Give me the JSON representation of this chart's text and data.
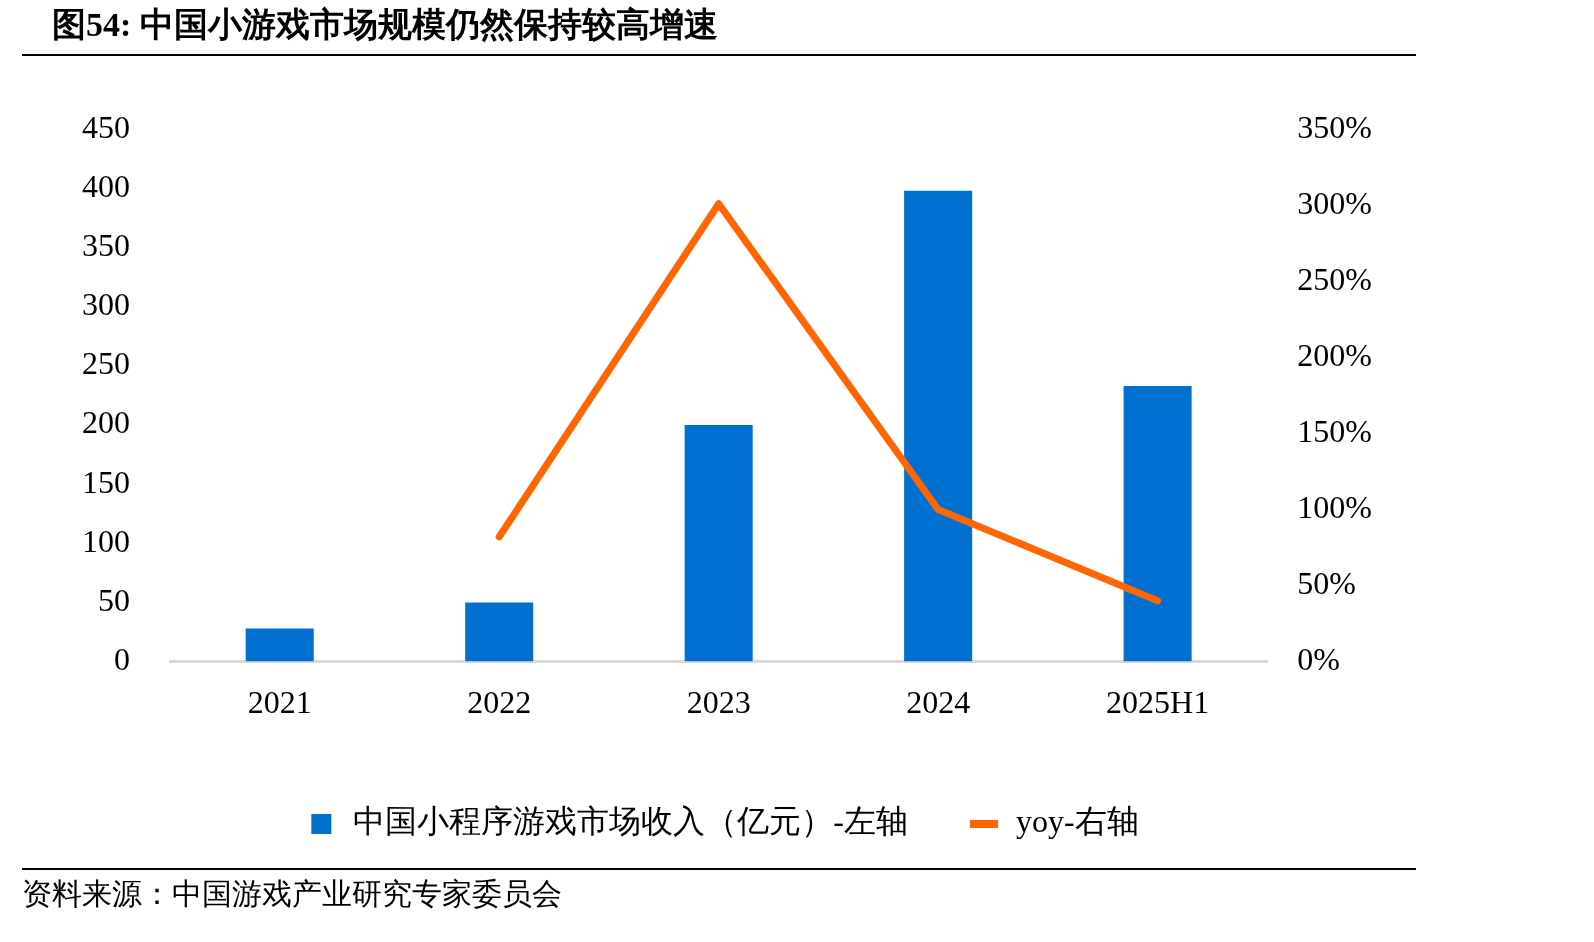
{
  "chart_data": {
    "type": "bar",
    "title": "图54:  中国小游戏市场规模仍然保持较高增速",
    "categories": [
      "2021",
      "2022",
      "2023",
      "2024",
      "2025H1"
    ],
    "series": [
      {
        "name": "中国小程序游戏市场收入（亿元）-左轴",
        "color": "#0070d0",
        "values": [
          28,
          50,
          200,
          398,
          233
        ]
      },
      {
        "name": "yoy-右轴",
        "type": "line",
        "axis": "y2",
        "color": "#ff6600",
        "values": [
          null,
          82,
          301,
          100,
          40
        ]
      }
    ],
    "ylim": [
      0,
      450
    ],
    "yticks": [
      0,
      50,
      100,
      150,
      200,
      250,
      300,
      350,
      400,
      450
    ],
    "y2lim": [
      0,
      350
    ],
    "y2ticks": [
      {
        "value": 0,
        "label": "0%"
      },
      {
        "value": 50,
        "label": "50%"
      },
      {
        "value": 100,
        "label": "100%"
      },
      {
        "value": 150,
        "label": "150%"
      },
      {
        "value": 200,
        "label": "200%"
      },
      {
        "value": 250,
        "label": "250%"
      },
      {
        "value": 300,
        "label": "300%"
      },
      {
        "value": 350,
        "label": "350%"
      }
    ],
    "grid": false,
    "legend": "bottom",
    "marker": "none",
    "line_style": "solid",
    "annotations": [
      "资料来源：中国游戏产业研究专家委员会"
    ]
  }
}
